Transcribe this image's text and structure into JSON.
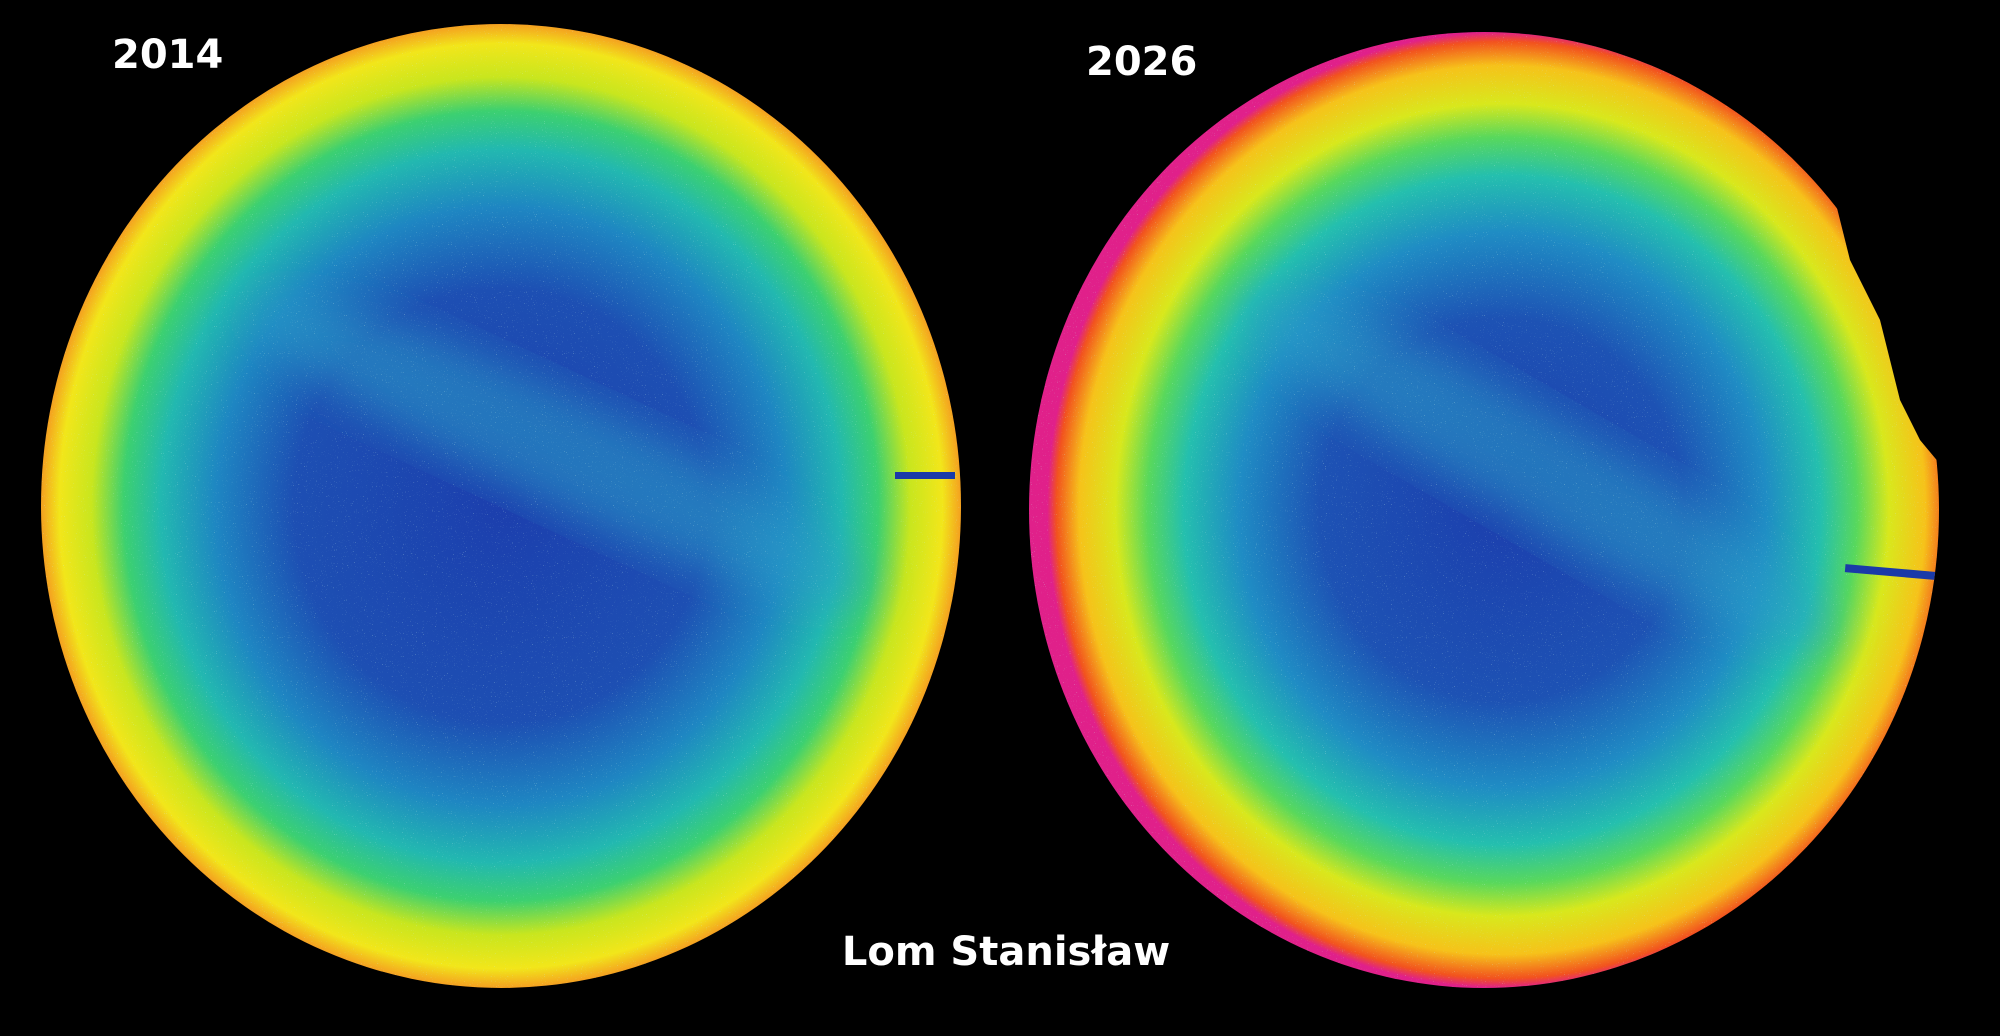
{
  "labels": {
    "left_year": "2014",
    "right_year": "2026",
    "location": "Lom Stanisław"
  }
}
